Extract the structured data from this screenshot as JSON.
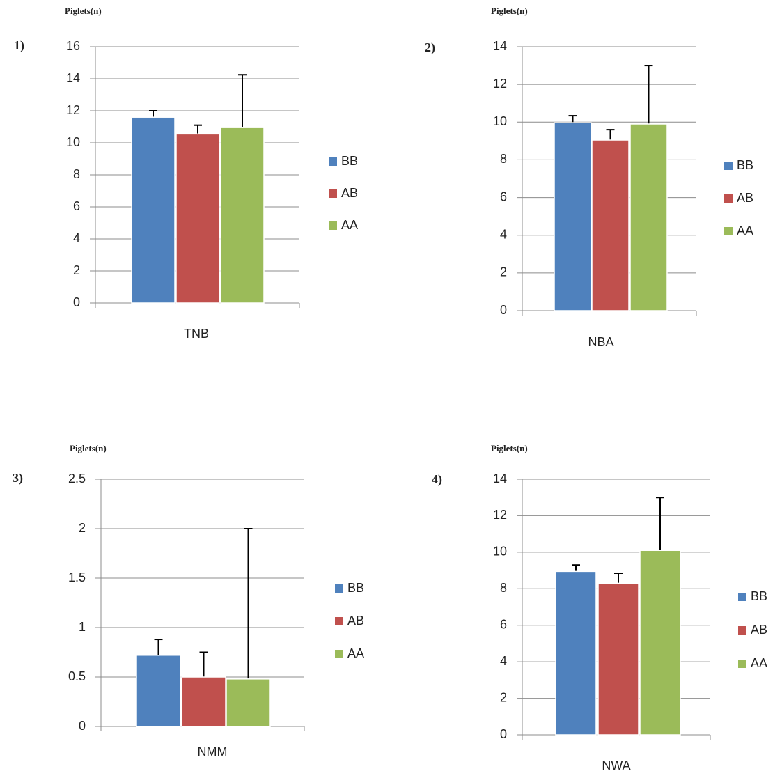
{
  "chart_data": [
    {
      "type": "bar",
      "panel": "1)",
      "y_label": "Piglets(n)",
      "category": "TNB",
      "ylim": [
        0,
        16
      ],
      "yticks": [
        0,
        2,
        4,
        6,
        8,
        10,
        12,
        14,
        16
      ],
      "grid": true,
      "series": [
        {
          "name": "BB",
          "color": "#4f81bd",
          "values": [
            11.6
          ],
          "errors": [
            0.4
          ]
        },
        {
          "name": "AB",
          "color": "#c0504d",
          "values": [
            10.55
          ],
          "errors": [
            0.55
          ]
        },
        {
          "name": "AA",
          "color": "#9bbb59",
          "values": [
            10.95
          ],
          "errors": [
            3.3
          ]
        }
      ]
    },
    {
      "type": "bar",
      "panel": "2)",
      "y_label": "Piglets(n)",
      "category": "NBA",
      "ylim": [
        0,
        14
      ],
      "yticks": [
        0,
        2,
        4,
        6,
        8,
        10,
        12,
        14
      ],
      "grid": true,
      "series": [
        {
          "name": "BB",
          "color": "#4f81bd",
          "values": [
            9.97
          ],
          "errors": [
            0.37
          ]
        },
        {
          "name": "AB",
          "color": "#c0504d",
          "values": [
            9.05
          ],
          "errors": [
            0.55
          ]
        },
        {
          "name": "AA",
          "color": "#9bbb59",
          "values": [
            9.9
          ],
          "errors": [
            3.1
          ]
        }
      ]
    },
    {
      "type": "bar",
      "panel": "3)",
      "y_label": "Piglets(n)",
      "category": "NMM",
      "ylim": [
        0,
        2.5
      ],
      "yticks": [
        0,
        0.5,
        1,
        1.5,
        2,
        2.5
      ],
      "grid": true,
      "series": [
        {
          "name": "BB",
          "color": "#4f81bd",
          "values": [
            0.72
          ],
          "errors": [
            0.16
          ]
        },
        {
          "name": "AB",
          "color": "#c0504d",
          "values": [
            0.5
          ],
          "errors": [
            0.25
          ]
        },
        {
          "name": "AA",
          "color": "#9bbb59",
          "values": [
            0.48
          ],
          "errors": [
            1.52
          ]
        }
      ]
    },
    {
      "type": "bar",
      "panel": "4)",
      "y_label": "Piglets(n)",
      "category": "NWA",
      "ylim": [
        0,
        14
      ],
      "yticks": [
        0,
        2,
        4,
        6,
        8,
        10,
        12,
        14
      ],
      "grid": true,
      "series": [
        {
          "name": "BB",
          "color": "#4f81bd",
          "values": [
            8.95
          ],
          "errors": [
            0.35
          ]
        },
        {
          "name": "AB",
          "color": "#c0504d",
          "values": [
            8.3
          ],
          "errors": [
            0.55
          ]
        },
        {
          "name": "AA",
          "color": "#9bbb59",
          "values": [
            10.1
          ],
          "errors": [
            2.9
          ]
        }
      ]
    }
  ]
}
